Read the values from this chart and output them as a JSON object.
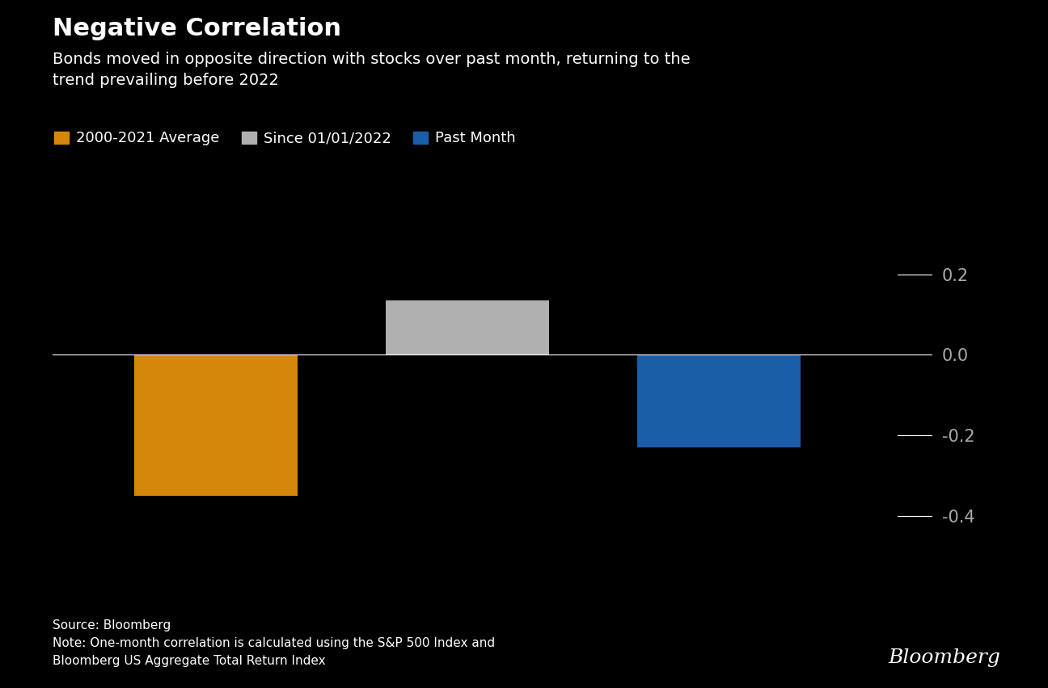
{
  "title": "Negative Correlation",
  "subtitle": "Bonds moved in opposite direction with stocks over past month, returning to the\ntrend prevailing before 2022",
  "categories": [
    "2000-2021 Average",
    "Since 01/01/2022",
    "Past Month"
  ],
  "values": [
    -0.35,
    0.135,
    -0.23
  ],
  "bar_colors": [
    "#D4870A",
    "#B0B0B0",
    "#1A5EA8"
  ],
  "background_color": "#000000",
  "text_color": "#FFFFFF",
  "tick_text_color": "#AAAAAA",
  "legend_labels": [
    "2000-2021 Average",
    "Since 01/01/2022",
    "Past Month"
  ],
  "legend_colors": [
    "#D4870A",
    "#B0B0B0",
    "#1A5EA8"
  ],
  "yticks": [
    0.2,
    0.0,
    -0.2,
    -0.4
  ],
  "ylim": [
    -0.52,
    0.3
  ],
  "source_text": "Source: Bloomberg\nNote: One-month correlation is calculated using the S&P 500 Index and\nBloomberg US Aggregate Total Return Index",
  "bloomberg_label": "Bloomberg",
  "title_fontsize": 22,
  "subtitle_fontsize": 14,
  "tick_fontsize": 15,
  "legend_fontsize": 13,
  "source_fontsize": 11,
  "bloomberg_fontsize": 18
}
